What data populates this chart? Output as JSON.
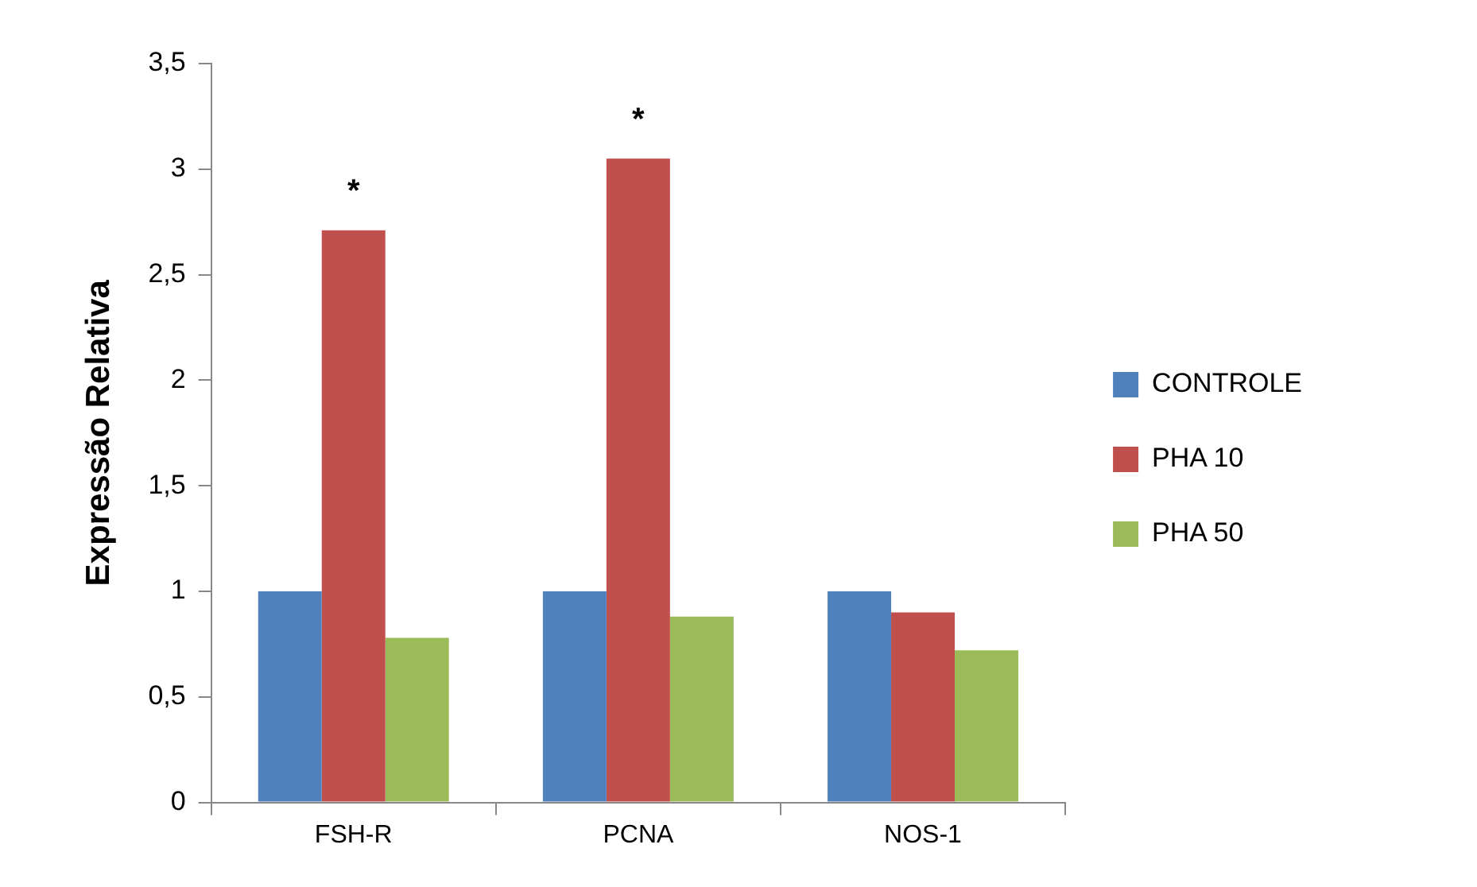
{
  "chart_data": {
    "type": "bar",
    "ylabel": "Expressão Relativa",
    "categories": [
      "FSH-R",
      "PCNA",
      "NOS-1"
    ],
    "series": [
      {
        "name": "CONTROLE",
        "color": "#4f81bd",
        "values": [
          1,
          1,
          1
        ]
      },
      {
        "name": "PHA 10",
        "color": "#c0504d",
        "values": [
          2.71,
          3.05,
          0.9
        ]
      },
      {
        "name": "PHA 50",
        "color": "#9bbb59",
        "values": [
          0.78,
          0.88,
          0.72
        ]
      }
    ],
    "ylim": [
      0,
      3.5
    ],
    "yticks": [
      0,
      {
        "value": 0.5,
        "label": "0,5"
      },
      1,
      {
        "value": 1.5,
        "label": "1,5"
      },
      2,
      {
        "value": 2.5,
        "label": "2,5"
      },
      3,
      {
        "value": 3.5,
        "label": "3,5"
      }
    ],
    "annotations": [
      {
        "text": "*",
        "x": "FSH-R",
        "y": 2.71
      },
      {
        "text": "*",
        "x": "PCNA",
        "y": 3.05
      }
    ],
    "grid": false,
    "legend": "right"
  }
}
